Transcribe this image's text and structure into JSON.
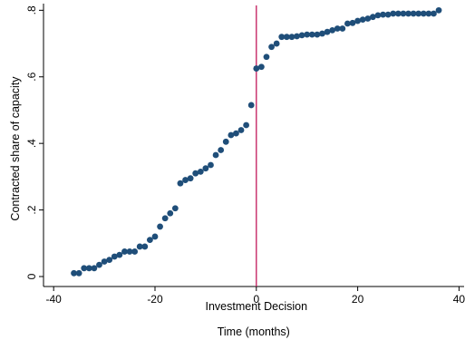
{
  "chart_data": {
    "type": "scatter",
    "title": "",
    "xlabel": "Time (months)",
    "ylabel": "Contracted share of capacity",
    "xlim": [
      -42,
      41
    ],
    "ylim": [
      -0.03,
      0.82
    ],
    "x_ticks": [
      -40,
      -20,
      0,
      20,
      40
    ],
    "x_tick_labels": [
      "-40",
      "-20",
      "0",
      "20",
      "40"
    ],
    "y_ticks": [
      0,
      0.2,
      0.4,
      0.6,
      0.8
    ],
    "y_tick_labels": [
      "0",
      ".2",
      ".4",
      ".6",
      ".8"
    ],
    "grid": false,
    "legend": "none",
    "marker_color": "#1f4e79",
    "reference_line": {
      "x": 0,
      "color": "#c2185b",
      "label": "Investment Decision"
    },
    "series": [
      {
        "x": [
          -36,
          -35,
          -34,
          -33,
          -32,
          -31,
          -30,
          -29,
          -28,
          -27,
          -26,
          -25,
          -24,
          -23,
          -22,
          -21,
          -20,
          -19,
          -18,
          -17,
          -16,
          -15,
          -14,
          -13,
          -12,
          -11,
          -10,
          -9,
          -8,
          -7,
          -6,
          -5,
          -4,
          -3,
          -2,
          -1,
          0,
          1,
          2,
          3,
          4,
          5,
          6,
          7,
          8,
          9,
          10,
          11,
          12,
          13,
          14,
          15,
          16,
          17,
          18,
          19,
          20,
          21,
          22,
          23,
          24,
          25,
          26,
          27,
          28,
          29,
          30,
          31,
          32,
          33,
          34,
          35,
          36
        ],
        "y": [
          0.01,
          0.01,
          0.025,
          0.025,
          0.025,
          0.035,
          0.045,
          0.05,
          0.06,
          0.065,
          0.075,
          0.075,
          0.075,
          0.09,
          0.09,
          0.11,
          0.12,
          0.15,
          0.175,
          0.19,
          0.205,
          0.28,
          0.29,
          0.295,
          0.31,
          0.315,
          0.325,
          0.335,
          0.365,
          0.38,
          0.405,
          0.425,
          0.43,
          0.44,
          0.455,
          0.515,
          0.625,
          0.63,
          0.66,
          0.69,
          0.7,
          0.72,
          0.72,
          0.72,
          0.722,
          0.725,
          0.727,
          0.727,
          0.727,
          0.73,
          0.735,
          0.74,
          0.745,
          0.745,
          0.76,
          0.762,
          0.768,
          0.772,
          0.775,
          0.78,
          0.785,
          0.787,
          0.787,
          0.79,
          0.79,
          0.79,
          0.79,
          0.79,
          0.79,
          0.79,
          0.79,
          0.79,
          0.8
        ]
      }
    ]
  }
}
